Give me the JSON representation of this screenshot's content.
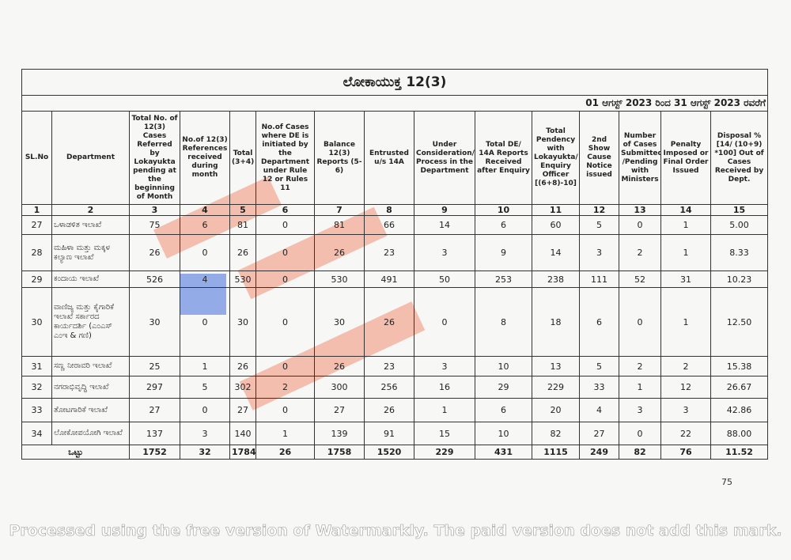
{
  "title": "ಲೋಕಾಯುಕ್ತ 12(3)",
  "date_range": "01 ಆಗಸ್ಟ್ 2023 ರಿಂದ 31 ಆಗಸ್ಟ್ 2023 ರವರೆಗೆ",
  "table": {
    "headers": [
      "SL.No",
      "Department",
      "Total No. of 12(3) Cases Referred by Lokayukta pending at the beginning of Month",
      "No.of 12(3) References received during month",
      "Total (3+4)",
      "No.of Cases where DE is initiated by the Department under Rule 12 or Rules 11",
      "Balance 12(3) Reports (5-6)",
      "Entrusted u/s 14A",
      "Under Consideration/ Process in the Department",
      "Total DE/ 14A Reports Received after Enquiry",
      "Total Pendency with Lokayukta/ Enquiry Officer [(6+8)-10]",
      "2nd Show Cause Notice issued",
      "Number of Cases Submitted /Pending with Ministers",
      "Penalty Imposed or Final Order Issued",
      "Disposal % [14/ (10+9) *100] Out of Cases Received by Dept."
    ],
    "column_numbers": [
      "1",
      "2",
      "3",
      "4",
      "5",
      "6",
      "7",
      "8",
      "9",
      "10",
      "11",
      "12",
      "13",
      "14",
      "15"
    ],
    "rows": [
      [
        "27",
        "ಒಳಾಡಳಿತ ಇಲಾಖೆ",
        "75",
        "6",
        "81",
        "0",
        "81",
        "66",
        "14",
        "6",
        "60",
        "5",
        "0",
        "1",
        "5.00"
      ],
      [
        "28",
        "ಮಹಿಳಾ ಮತ್ತು ಮಕ್ಕಳ ಕಲ್ಯಾಣ ಇಲಾಖೆ",
        "26",
        "0",
        "26",
        "0",
        "26",
        "23",
        "3",
        "9",
        "14",
        "3",
        "2",
        "1",
        "8.33"
      ],
      [
        "29",
        "ಕಂದಾಯ ಇಲಾಖೆ",
        "526",
        "4",
        "530",
        "0",
        "530",
        "491",
        "50",
        "253",
        "238",
        "111",
        "52",
        "31",
        "10.23"
      ],
      [
        "30",
        "ವಾಣಿಜ್ಯ ಮತ್ತು ಕೈಗಾರಿಕೆ ಇಲಾಖೆ ಸರ್ಕಾರದ ಕಾರ್ಯದರ್ಶಿ (ಎಂಎಸ್ ಎಂಇ & ಗಣಿ)",
        "30",
        "0",
        "30",
        "0",
        "30",
        "26",
        "0",
        "8",
        "18",
        "6",
        "0",
        "1",
        "12.50"
      ],
      [
        "31",
        "ಸಣ್ಣ ನೀರಾವರಿ ಇಲಾಖೆ",
        "25",
        "1",
        "26",
        "0",
        "26",
        "23",
        "3",
        "10",
        "13",
        "5",
        "2",
        "2",
        "15.38"
      ],
      [
        "32",
        "ನಗರಾಭಿವೃದ್ಧಿ ಇಲಾಖೆ",
        "297",
        "5",
        "302",
        "2",
        "300",
        "256",
        "16",
        "29",
        "229",
        "33",
        "1",
        "12",
        "26.67"
      ],
      [
        "33",
        "ತೋಟಗಾರಿಕೆ ಇಲಾಖೆ",
        "27",
        "0",
        "27",
        "0",
        "27",
        "26",
        "1",
        "6",
        "20",
        "4",
        "3",
        "3",
        "42.86"
      ],
      [
        "34",
        "ಲೋಕೋಪಯೋಗಿ ಇಲಾಖೆ",
        "137",
        "3",
        "140",
        "1",
        "139",
        "91",
        "15",
        "10",
        "82",
        "27",
        "0",
        "22",
        "88.00"
      ]
    ],
    "total": [
      "ಒಟ್ಟು",
      "1752",
      "32",
      "1784",
      "26",
      "1758",
      "1520",
      "229",
      "431",
      "1115",
      "249",
      "82",
      "76",
      "11.52"
    ]
  },
  "page_number": "75",
  "watermark": "Processed using the free version of Watermarkly. The paid version does not add this mark."
}
